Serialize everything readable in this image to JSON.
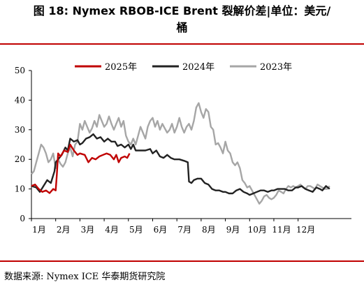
{
  "header": {
    "title_line1": "图 18: Nymex RBOB-ICE Brent 裂解价差|单位：美元/",
    "title_line2": "桶"
  },
  "footer": {
    "source": "数据来源:  Nymex ICE  华泰期货研究院"
  },
  "colors": {
    "rule": "#c00000",
    "series_2025": "#c00000",
    "series_2024": "#222222",
    "series_2023": "#a6a6a6"
  },
  "chart_data": {
    "type": "line",
    "title": "",
    "xlabel": "",
    "ylabel": "",
    "ylim": [
      0,
      50
    ],
    "yticks": [
      0,
      10,
      20,
      30,
      40,
      50
    ],
    "xlim": [
      0,
      13.2
    ],
    "xticks": [
      {
        "v": 0,
        "label": "1月"
      },
      {
        "v": 1,
        "label": "2月"
      },
      {
        "v": 2,
        "label": "3月"
      },
      {
        "v": 3,
        "label": "4月"
      },
      {
        "v": 4,
        "label": "5月"
      },
      {
        "v": 5,
        "label": "6月"
      },
      {
        "v": 6,
        "label": "7月"
      },
      {
        "v": 7,
        "label": "8月"
      },
      {
        "v": 8,
        "label": "9月"
      },
      {
        "v": 9,
        "label": "10月"
      },
      {
        "v": 10,
        "label": "11月"
      },
      {
        "v": 11,
        "label": "12月"
      }
    ],
    "grid": false,
    "legend_position": "top-center",
    "series": [
      {
        "name": "2025年",
        "color": "#c00000",
        "points": [
          [
            0,
            11
          ],
          [
            0.15,
            11.5
          ],
          [
            0.3,
            10
          ],
          [
            0.45,
            9
          ],
          [
            0.6,
            9.5
          ],
          [
            0.75,
            8.6
          ],
          [
            0.9,
            10
          ],
          [
            1.0,
            9.5
          ],
          [
            1.05,
            15
          ],
          [
            1.1,
            22
          ],
          [
            1.2,
            21
          ],
          [
            1.35,
            23
          ],
          [
            1.5,
            22.5
          ],
          [
            1.6,
            25
          ],
          [
            1.75,
            23
          ],
          [
            1.9,
            21.5
          ],
          [
            2.0,
            22
          ],
          [
            2.2,
            21.5
          ],
          [
            2.35,
            19
          ],
          [
            2.5,
            20.5
          ],
          [
            2.65,
            20
          ],
          [
            2.8,
            21
          ],
          [
            2.95,
            21.5
          ],
          [
            3.1,
            22
          ],
          [
            3.25,
            21.5
          ],
          [
            3.4,
            20
          ],
          [
            3.5,
            21.5
          ],
          [
            3.6,
            19
          ],
          [
            3.7,
            20.5
          ],
          [
            3.85,
            21
          ],
          [
            3.95,
            20.5
          ],
          [
            4.05,
            22
          ]
        ]
      },
      {
        "name": "2024年",
        "color": "#222222",
        "points": [
          [
            0,
            11
          ],
          [
            0.2,
            10.5
          ],
          [
            0.35,
            9
          ],
          [
            0.5,
            11
          ],
          [
            0.65,
            13
          ],
          [
            0.8,
            12
          ],
          [
            0.95,
            16
          ],
          [
            1.0,
            19
          ],
          [
            1.1,
            20
          ],
          [
            1.25,
            21.5
          ],
          [
            1.4,
            24
          ],
          [
            1.5,
            23
          ],
          [
            1.6,
            27
          ],
          [
            1.75,
            26
          ],
          [
            1.9,
            26.5
          ],
          [
            2.0,
            25
          ],
          [
            2.1,
            25.5
          ],
          [
            2.25,
            27
          ],
          [
            2.4,
            27.5
          ],
          [
            2.55,
            28.5
          ],
          [
            2.7,
            27
          ],
          [
            2.85,
            27.5
          ],
          [
            3.0,
            26
          ],
          [
            3.15,
            27
          ],
          [
            3.3,
            26
          ],
          [
            3.45,
            26
          ],
          [
            3.55,
            24.5
          ],
          [
            3.7,
            25
          ],
          [
            3.85,
            24
          ],
          [
            4.0,
            25
          ],
          [
            4.1,
            23.5
          ],
          [
            4.2,
            25
          ],
          [
            4.3,
            23
          ],
          [
            4.5,
            23
          ],
          [
            4.7,
            23
          ],
          [
            4.9,
            23.5
          ],
          [
            5.0,
            22
          ],
          [
            5.15,
            23
          ],
          [
            5.3,
            21
          ],
          [
            5.45,
            20.5
          ],
          [
            5.6,
            21.5
          ],
          [
            5.75,
            20.5
          ],
          [
            5.9,
            20
          ],
          [
            6.1,
            20
          ],
          [
            6.3,
            19.5
          ],
          [
            6.45,
            19
          ],
          [
            6.5,
            12.5
          ],
          [
            6.6,
            12
          ],
          [
            6.7,
            13
          ],
          [
            6.85,
            13.5
          ],
          [
            7.0,
            13.5
          ],
          [
            7.15,
            12
          ],
          [
            7.3,
            11.5
          ],
          [
            7.45,
            10
          ],
          [
            7.6,
            9.5
          ],
          [
            7.75,
            9.5
          ],
          [
            7.9,
            9
          ],
          [
            8.0,
            9
          ],
          [
            8.15,
            8.5
          ],
          [
            8.3,
            8.5
          ],
          [
            8.45,
            9.5
          ],
          [
            8.6,
            10
          ],
          [
            8.75,
            9
          ],
          [
            8.9,
            8.5
          ],
          [
            9.0,
            8
          ],
          [
            9.15,
            8.5
          ],
          [
            9.3,
            9
          ],
          [
            9.45,
            9.5
          ],
          [
            9.6,
            9.5
          ],
          [
            9.75,
            9
          ],
          [
            9.9,
            9.5
          ],
          [
            10.0,
            9.5
          ],
          [
            10.15,
            10
          ],
          [
            10.3,
            10
          ],
          [
            10.45,
            10
          ],
          [
            10.6,
            9.5
          ],
          [
            10.75,
            9.5
          ],
          [
            10.9,
            10.5
          ],
          [
            11.0,
            10.5
          ],
          [
            11.15,
            11
          ],
          [
            11.3,
            10
          ],
          [
            11.45,
            9.5
          ],
          [
            11.6,
            9
          ],
          [
            11.75,
            10.5
          ],
          [
            11.9,
            10
          ],
          [
            12.0,
            9.5
          ],
          [
            12.15,
            11
          ],
          [
            12.3,
            10
          ]
        ]
      },
      {
        "name": "2023年",
        "color": "#a6a6a6",
        "points": [
          [
            0,
            15
          ],
          [
            0.1,
            16
          ],
          [
            0.2,
            19
          ],
          [
            0.3,
            22
          ],
          [
            0.4,
            25
          ],
          [
            0.5,
            24
          ],
          [
            0.6,
            22
          ],
          [
            0.7,
            19
          ],
          [
            0.8,
            20
          ],
          [
            0.9,
            22
          ],
          [
            1.0,
            17
          ],
          [
            1.1,
            20
          ],
          [
            1.2,
            18.5
          ],
          [
            1.3,
            17.5
          ],
          [
            1.4,
            19
          ],
          [
            1.5,
            22
          ],
          [
            1.6,
            24
          ],
          [
            1.7,
            21
          ],
          [
            1.8,
            25
          ],
          [
            1.9,
            26
          ],
          [
            2.0,
            32
          ],
          [
            2.1,
            30
          ],
          [
            2.2,
            33
          ],
          [
            2.3,
            31
          ],
          [
            2.4,
            29
          ],
          [
            2.5,
            30.5
          ],
          [
            2.6,
            33
          ],
          [
            2.7,
            31
          ],
          [
            2.8,
            35
          ],
          [
            2.9,
            33
          ],
          [
            3.0,
            31
          ],
          [
            3.1,
            32
          ],
          [
            3.2,
            34.5
          ],
          [
            3.3,
            32
          ],
          [
            3.4,
            30
          ],
          [
            3.5,
            32
          ],
          [
            3.6,
            34
          ],
          [
            3.7,
            31
          ],
          [
            3.8,
            33
          ],
          [
            3.9,
            28
          ],
          [
            4.0,
            26
          ],
          [
            4.1,
            25
          ],
          [
            4.2,
            27
          ],
          [
            4.3,
            25
          ],
          [
            4.4,
            28
          ],
          [
            4.5,
            31
          ],
          [
            4.6,
            29
          ],
          [
            4.7,
            27
          ],
          [
            4.8,
            31
          ],
          [
            4.9,
            33
          ],
          [
            5.0,
            34
          ],
          [
            5.1,
            31
          ],
          [
            5.2,
            33
          ],
          [
            5.3,
            30
          ],
          [
            5.4,
            32
          ],
          [
            5.5,
            30.5
          ],
          [
            5.6,
            29
          ],
          [
            5.7,
            30
          ],
          [
            5.8,
            32
          ],
          [
            5.9,
            29
          ],
          [
            6.0,
            31
          ],
          [
            6.1,
            34
          ],
          [
            6.2,
            31
          ],
          [
            6.3,
            29
          ],
          [
            6.4,
            31
          ],
          [
            6.5,
            32
          ],
          [
            6.6,
            30
          ],
          [
            6.7,
            33
          ],
          [
            6.8,
            37.5
          ],
          [
            6.9,
            39
          ],
          [
            7.0,
            36
          ],
          [
            7.1,
            34
          ],
          [
            7.2,
            37
          ],
          [
            7.3,
            36
          ],
          [
            7.4,
            31
          ],
          [
            7.5,
            30
          ],
          [
            7.6,
            25
          ],
          [
            7.7,
            25.5
          ],
          [
            7.8,
            24
          ],
          [
            7.9,
            22
          ],
          [
            8.0,
            26
          ],
          [
            8.1,
            23
          ],
          [
            8.2,
            22
          ],
          [
            8.3,
            19
          ],
          [
            8.4,
            18
          ],
          [
            8.5,
            19
          ],
          [
            8.6,
            17
          ],
          [
            8.7,
            13
          ],
          [
            8.8,
            12
          ],
          [
            8.9,
            10.5
          ],
          [
            9.0,
            11
          ],
          [
            9.1,
            9.5
          ],
          [
            9.2,
            8
          ],
          [
            9.3,
            6.5
          ],
          [
            9.4,
            5
          ],
          [
            9.5,
            6
          ],
          [
            9.6,
            7.5
          ],
          [
            9.7,
            8
          ],
          [
            9.8,
            7
          ],
          [
            9.9,
            6.5
          ],
          [
            10.0,
            7
          ],
          [
            10.1,
            8
          ],
          [
            10.2,
            9.5
          ],
          [
            10.3,
            9
          ],
          [
            10.4,
            8.5
          ],
          [
            10.5,
            10
          ],
          [
            10.6,
            11
          ],
          [
            10.7,
            10.5
          ],
          [
            10.8,
            11
          ],
          [
            10.9,
            10.5
          ],
          [
            11.0,
            11
          ],
          [
            11.1,
            11.5
          ],
          [
            11.2,
            10.5
          ],
          [
            11.3,
            10
          ],
          [
            11.4,
            11
          ],
          [
            11.5,
            11
          ],
          [
            11.6,
            10.5
          ],
          [
            11.7,
            10
          ],
          [
            11.8,
            11.5
          ],
          [
            11.9,
            11
          ],
          [
            12.0,
            10.5
          ],
          [
            12.1,
            10
          ],
          [
            12.2,
            10
          ],
          [
            12.3,
            11
          ]
        ]
      }
    ]
  }
}
